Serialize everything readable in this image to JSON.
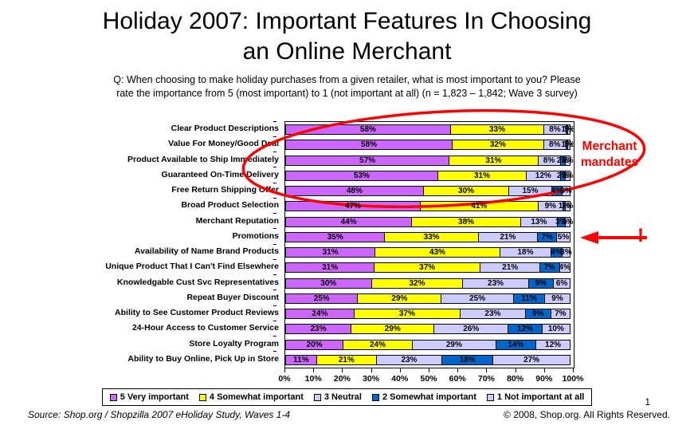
{
  "title_line1": "Holiday 2007:  Important Features In Choosing",
  "title_line2": "an Online Merchant",
  "subtitle_line1": "Q:  When choosing to make holiday purchases from a given retailer, what is most important to you?  Please",
  "subtitle_line2": "rate the importance from 5 (most important)  to 1 (not important at  all)    (n = 1,823 – 1,842;  Wave 3 survey)",
  "annotations": {
    "ellipse_label_line1": "Merchant",
    "ellipse_label_line2": "mandates",
    "exclamation": "!",
    "color": "#FF0000"
  },
  "footer": {
    "source": "Source:  Shop.org / Shopzilla 2007 eHoliday Study, Waves 1-4",
    "copyright": "© 2008, Shop.org.  All Rights Reserved.",
    "page_number": "1"
  },
  "chart_data": {
    "type": "bar",
    "orientation": "horizontal",
    "stacked": true,
    "grid": false,
    "legend_position": "bottom",
    "xlim": [
      0,
      100
    ],
    "x_ticks": [
      "0%",
      "10%",
      "20%",
      "30%",
      "40%",
      "50%",
      "60%",
      "70%",
      "80%",
      "90%",
      "100%"
    ],
    "categories": [
      "Clear Product Descriptions",
      "Value For Money/Good Deal",
      "Product Available to Ship Immediately",
      "Guaranteed On-Time Delivery",
      "Free Return Shipping Offer",
      "Broad Product Selection",
      "Merchant Reputation",
      "Promotions",
      "Availability of Name Brand Products",
      "Unique Product That I Can't Find Elsewhere",
      "Knowledgable Cust Svc Representatives",
      "Repeat Buyer Discount",
      "Ability to See Customer Product Reviews",
      "24-Hour Access to Customer Service",
      "Store Loyalty Program",
      "Ability to Buy Online, Pick Up in Store"
    ],
    "series": [
      {
        "name": "5 Very important",
        "color": "#CC66FF",
        "values": [
          58,
          58,
          57,
          53,
          48,
          47,
          44,
          35,
          31,
          31,
          30,
          25,
          24,
          23,
          20,
          11
        ]
      },
      {
        "name": "4 Somewhat important",
        "color": "#FFFF00",
        "values": [
          33,
          32,
          31,
          31,
          30,
          41,
          38,
          33,
          43,
          37,
          32,
          29,
          37,
          29,
          24,
          21
        ]
      },
      {
        "name": "3 Neutral",
        "color": "#CCCCFF",
        "values": [
          8,
          8,
          8,
          12,
          15,
          9,
          13,
          21,
          18,
          21,
          23,
          25,
          23,
          26,
          29,
          23
        ]
      },
      {
        "name": "2 Somewhat important",
        "color": "#0066CC",
        "values": [
          1,
          1,
          2,
          2,
          4,
          1,
          3,
          7,
          4,
          7,
          9,
          11,
          9,
          12,
          14,
          18
        ]
      },
      {
        "name": "1 Not important at all",
        "color": "#CCCCFF",
        "values": [
          1,
          1,
          2,
          2,
          3,
          2,
          2,
          5,
          3,
          4,
          6,
          9,
          7,
          10,
          12,
          27
        ]
      }
    ]
  }
}
